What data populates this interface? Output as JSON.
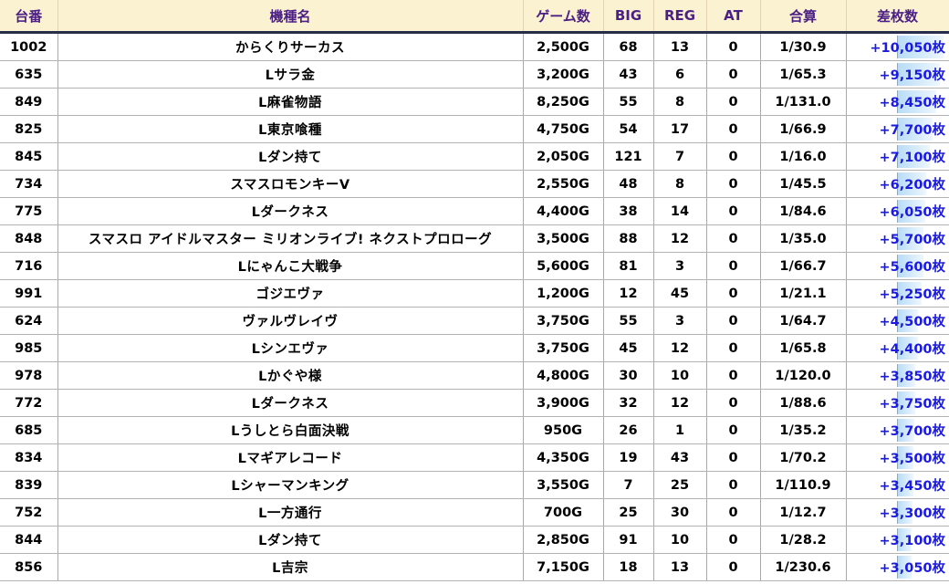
{
  "table": {
    "headers": {
      "machine_no": "台番",
      "machine_name": "機種名",
      "games": "ゲーム数",
      "big": "BIG",
      "reg": "REG",
      "at": "AT",
      "combined": "合算",
      "diff": "差枚数"
    },
    "bar_color": "#b8dcf7",
    "diff_color": "#1a1ae0",
    "header_text_color": "#4b1f86",
    "header_bg_color": "#fbf2d2",
    "rows": [
      {
        "no": "1002",
        "name": "からくりサーカス",
        "games": "2,500G",
        "big": "68",
        "reg": "13",
        "at": "0",
        "combined": "1/30.9",
        "diff": "+10,050枚",
        "diff_value": 10050
      },
      {
        "no": "635",
        "name": "Lサラ金",
        "games": "3,200G",
        "big": "43",
        "reg": "6",
        "at": "0",
        "combined": "1/65.3",
        "diff": "+9,150枚",
        "diff_value": 9150
      },
      {
        "no": "849",
        "name": "L麻雀物語",
        "games": "8,250G",
        "big": "55",
        "reg": "8",
        "at": "0",
        "combined": "1/131.0",
        "diff": "+8,450枚",
        "diff_value": 8450
      },
      {
        "no": "825",
        "name": "L東京喰種",
        "games": "4,750G",
        "big": "54",
        "reg": "17",
        "at": "0",
        "combined": "1/66.9",
        "diff": "+7,700枚",
        "diff_value": 7700
      },
      {
        "no": "845",
        "name": "Lダン持て",
        "games": "2,050G",
        "big": "121",
        "reg": "7",
        "at": "0",
        "combined": "1/16.0",
        "diff": "+7,100枚",
        "diff_value": 7100
      },
      {
        "no": "734",
        "name": "スマスロモンキーV",
        "games": "2,550G",
        "big": "48",
        "reg": "8",
        "at": "0",
        "combined": "1/45.5",
        "diff": "+6,200枚",
        "diff_value": 6200
      },
      {
        "no": "775",
        "name": "Lダークネス",
        "games": "4,400G",
        "big": "38",
        "reg": "14",
        "at": "0",
        "combined": "1/84.6",
        "diff": "+6,050枚",
        "diff_value": 6050
      },
      {
        "no": "848",
        "name": "スマスロ アイドルマスター ミリオンライブ! ネクストプロローグ",
        "games": "3,500G",
        "big": "88",
        "reg": "12",
        "at": "0",
        "combined": "1/35.0",
        "diff": "+5,700枚",
        "diff_value": 5700
      },
      {
        "no": "716",
        "name": "Lにゃんこ大戦争",
        "games": "5,600G",
        "big": "81",
        "reg": "3",
        "at": "0",
        "combined": "1/66.7",
        "diff": "+5,600枚",
        "diff_value": 5600
      },
      {
        "no": "991",
        "name": "ゴジエヴァ",
        "games": "1,200G",
        "big": "12",
        "reg": "45",
        "at": "0",
        "combined": "1/21.1",
        "diff": "+5,250枚",
        "diff_value": 5250
      },
      {
        "no": "624",
        "name": "ヴァルヴレイヴ",
        "games": "3,750G",
        "big": "55",
        "reg": "3",
        "at": "0",
        "combined": "1/64.7",
        "diff": "+4,500枚",
        "diff_value": 4500
      },
      {
        "no": "985",
        "name": "Lシンエヴァ",
        "games": "3,750G",
        "big": "45",
        "reg": "12",
        "at": "0",
        "combined": "1/65.8",
        "diff": "+4,400枚",
        "diff_value": 4400
      },
      {
        "no": "978",
        "name": "Lかぐや様",
        "games": "4,800G",
        "big": "30",
        "reg": "10",
        "at": "0",
        "combined": "1/120.0",
        "diff": "+3,850枚",
        "diff_value": 3850
      },
      {
        "no": "772",
        "name": "Lダークネス",
        "games": "3,900G",
        "big": "32",
        "reg": "12",
        "at": "0",
        "combined": "1/88.6",
        "diff": "+3,750枚",
        "diff_value": 3750
      },
      {
        "no": "685",
        "name": "Lうしとら白面決戦",
        "games": "950G",
        "big": "26",
        "reg": "1",
        "at": "0",
        "combined": "1/35.2",
        "diff": "+3,700枚",
        "diff_value": 3700
      },
      {
        "no": "834",
        "name": "Lマギアレコード",
        "games": "4,350G",
        "big": "19",
        "reg": "43",
        "at": "0",
        "combined": "1/70.2",
        "diff": "+3,500枚",
        "diff_value": 3500
      },
      {
        "no": "839",
        "name": "Lシャーマンキング",
        "games": "3,550G",
        "big": "7",
        "reg": "25",
        "at": "0",
        "combined": "1/110.9",
        "diff": "+3,450枚",
        "diff_value": 3450
      },
      {
        "no": "752",
        "name": "L一方通行",
        "games": "700G",
        "big": "25",
        "reg": "30",
        "at": "0",
        "combined": "1/12.7",
        "diff": "+3,300枚",
        "diff_value": 3300
      },
      {
        "no": "844",
        "name": "Lダン持て",
        "games": "2,850G",
        "big": "91",
        "reg": "10",
        "at": "0",
        "combined": "1/28.2",
        "diff": "+3,100枚",
        "diff_value": 3100
      },
      {
        "no": "856",
        "name": "L吉宗",
        "games": "7,150G",
        "big": "18",
        "reg": "13",
        "at": "0",
        "combined": "1/230.6",
        "diff": "+3,050枚",
        "diff_value": 3050
      }
    ]
  }
}
